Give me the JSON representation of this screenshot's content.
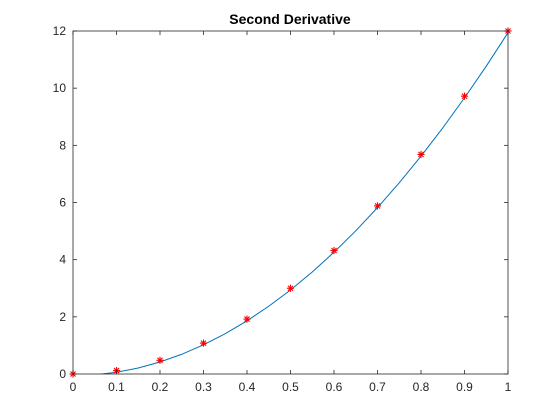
{
  "chart_data": {
    "type": "line",
    "title": "Second Derivative",
    "xlabel": "",
    "ylabel": "",
    "xlim": [
      0,
      1
    ],
    "ylim": [
      0,
      12
    ],
    "xticks": [
      0,
      0.1,
      0.2,
      0.3,
      0.4,
      0.5,
      0.6,
      0.7,
      0.8,
      0.9,
      1
    ],
    "xtick_labels": [
      "0",
      "0.1",
      "0.2",
      "0.3",
      "0.4",
      "0.5",
      "0.6",
      "0.7",
      "0.8",
      "0.9",
      "1"
    ],
    "yticks": [
      0,
      2,
      4,
      6,
      8,
      10,
      12
    ],
    "ytick_labels": [
      "0",
      "2",
      "4",
      "6",
      "8",
      "10",
      "12"
    ],
    "grid": false,
    "box": true,
    "series": [
      {
        "kind": "curve",
        "color": "#0072BD",
        "x": [
          0,
          0.05,
          0.1,
          0.15,
          0.2,
          0.25,
          0.3,
          0.35,
          0.4,
          0.45,
          0.5,
          0.55,
          0.6,
          0.65,
          0.7,
          0.75,
          0.8,
          0.85,
          0.9,
          0.95,
          1
        ],
        "y": [
          -0.06,
          -0.03,
          0.06,
          0.21,
          0.42,
          0.69,
          1.02,
          1.41,
          1.86,
          2.37,
          2.94,
          3.57,
          4.26,
          5.01,
          5.82,
          6.69,
          7.62,
          8.61,
          9.66,
          10.77,
          11.94
        ]
      },
      {
        "kind": "markers",
        "marker": "asterisk",
        "color": "#FF0000",
        "x": [
          0,
          0.1,
          0.2,
          0.3,
          0.4,
          0.5,
          0.6,
          0.7,
          0.8,
          0.9,
          1
        ],
        "y": [
          0,
          0.12,
          0.48,
          1.08,
          1.92,
          3,
          4.32,
          5.88,
          7.68,
          9.72,
          12
        ]
      }
    ]
  }
}
